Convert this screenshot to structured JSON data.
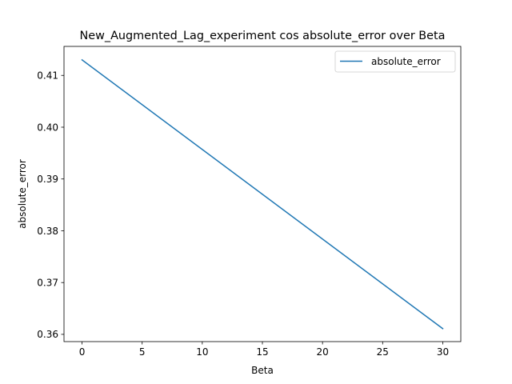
{
  "chart_data": {
    "type": "line",
    "title": "New_Augmented_Lag_experiment cos absolute_error over Beta",
    "xlabel": "Beta",
    "ylabel": "absolute_error",
    "xlim": [
      -1.5,
      31.5
    ],
    "ylim": [
      0.3586,
      0.4156
    ],
    "xticks": [
      0,
      5,
      10,
      15,
      20,
      25,
      30
    ],
    "xtick_labels": [
      "0",
      "5",
      "10",
      "15",
      "20",
      "25",
      "30"
    ],
    "yticks": [
      0.36,
      0.37,
      0.38,
      0.39,
      0.4,
      0.41
    ],
    "ytick_labels": [
      "0.36",
      "0.37",
      "0.38",
      "0.39",
      "0.40",
      "0.41"
    ],
    "grid": false,
    "legend_position": "top-right",
    "series": [
      {
        "name": "absolute_error",
        "color": "#1f77b4",
        "x": [
          0,
          30
        ],
        "y": [
          0.413,
          0.3611
        ]
      }
    ]
  }
}
